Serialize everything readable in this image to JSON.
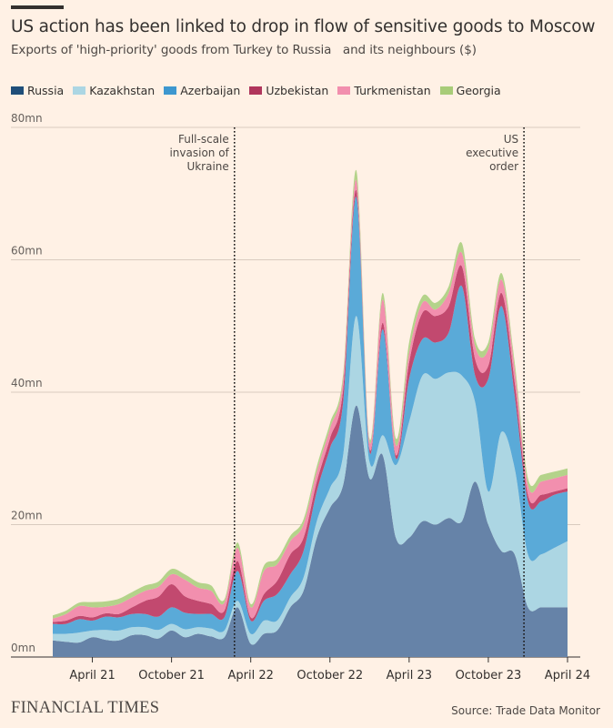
{
  "header": {
    "title": "US action has been linked to drop in flow of sensitive goods to Moscow",
    "subtitle": "Exports of 'high-priority' goods from Turkey to Russia   and its neighbours ($)"
  },
  "footer": {
    "logo": "FINANCIAL TIMES",
    "source": "Source: Trade Data Monitor"
  },
  "colors": {
    "background": "#fff1e5",
    "grid": "#d9cbbf",
    "Russia": "#6683a8",
    "Kazakhstan": "#acd6e3",
    "Azerbaijan": "#5aaad8",
    "Uzbekistan": "#c2496f",
    "Turkmenistan": "#f28fae",
    "Georgia": "#b4d38a"
  },
  "chart_data": {
    "type": "area",
    "stacked": true,
    "title": "US action has been linked to drop in flow of sensitive goods to Moscow",
    "subtitle": "Exports of 'high-priority' goods from Turkey to Russia   and its neighbours ($)",
    "y_unit_suffix": "mn",
    "ylim": [
      0,
      80
    ],
    "yticks": [
      0,
      20,
      40,
      60,
      80
    ],
    "ytick_labels": [
      "0mn",
      "20mn",
      "40mn",
      "60mn",
      "80mn"
    ],
    "xlim": [
      "2021-01",
      "2024-04"
    ],
    "xticks": [
      "2021-04",
      "2021-10",
      "2022-04",
      "2022-10",
      "2023-04",
      "2023-10",
      "2024-04"
    ],
    "xtick_labels": [
      "April 21",
      "October 21",
      "April 22",
      "October 22",
      "April 23",
      "October 23",
      "April 24"
    ],
    "grid": true,
    "legend_position": "top-left",
    "x": [
      "2021-01",
      "2021-02",
      "2021-03",
      "2021-04",
      "2021-05",
      "2021-06",
      "2021-07",
      "2021-08",
      "2021-09",
      "2021-10",
      "2021-11",
      "2021-12",
      "2022-01",
      "2022-02",
      "2022-03",
      "2022-04",
      "2022-05",
      "2022-06",
      "2022-07",
      "2022-08",
      "2022-09",
      "2022-10",
      "2022-11",
      "2022-12",
      "2023-01",
      "2023-02",
      "2023-03",
      "2023-04",
      "2023-05",
      "2023-06",
      "2023-07",
      "2023-08",
      "2023-09",
      "2023-10",
      "2023-11",
      "2023-12",
      "2024-01",
      "2024-02",
      "2024-03",
      "2024-04"
    ],
    "series": [
      {
        "name": "Russia",
        "values": [
          2.5,
          2.3,
          2.2,
          3.0,
          2.6,
          2.5,
          3.3,
          3.3,
          2.8,
          4.0,
          3.0,
          3.5,
          3.1,
          3.0,
          7.5,
          2.0,
          3.5,
          4.0,
          7.5,
          10.0,
          18.0,
          22.5,
          26.0,
          38.0,
          27.0,
          30.5,
          18.0,
          18.0,
          20.5,
          20.0,
          21.0,
          20.5,
          26.5,
          20.0,
          16.0,
          15.5,
          7.5,
          7.5,
          7.5,
          7.5
        ]
      },
      {
        "name": "Kazakhstan",
        "values": [
          1.0,
          1.2,
          1.5,
          1.0,
          1.5,
          1.5,
          1.2,
          1.2,
          1.3,
          1.0,
          1.2,
          1.0,
          1.2,
          1.0,
          1.0,
          1.5,
          2.0,
          1.5,
          1.5,
          2.0,
          2.5,
          3.0,
          4.5,
          13.5,
          2.5,
          3.0,
          11.0,
          17.5,
          22.0,
          22.0,
          22.0,
          22.0,
          12.0,
          5.0,
          18.0,
          13.0,
          8.0,
          8.0,
          9.0,
          10.0
        ]
      },
      {
        "name": "Azerbaijan",
        "values": [
          1.5,
          1.5,
          2.0,
          1.5,
          2.0,
          2.0,
          2.0,
          2.0,
          2.0,
          2.5,
          2.5,
          2.0,
          2.2,
          2.0,
          4.5,
          2.0,
          3.0,
          4.0,
          3.5,
          4.0,
          4.5,
          6.0,
          8.0,
          18.0,
          1.5,
          16.0,
          1.0,
          6.5,
          5.5,
          5.5,
          6.0,
          13.5,
          4.0,
          17.0,
          19.0,
          11.0,
          8.0,
          8.0,
          8.0,
          7.5
        ]
      },
      {
        "name": "Uzbekistan",
        "values": [
          0.3,
          0.5,
          0.5,
          0.5,
          0.5,
          0.5,
          1.0,
          2.0,
          3.0,
          3.5,
          2.5,
          2.0,
          1.5,
          1.0,
          1.5,
          0.5,
          1.0,
          2.0,
          3.0,
          2.0,
          1.5,
          1.5,
          2.0,
          1.0,
          0.5,
          1.0,
          0.5,
          2.5,
          4.0,
          4.0,
          4.0,
          3.0,
          2.5,
          2.0,
          2.0,
          2.0,
          1.0,
          1.0,
          0.5,
          0.5
        ]
      },
      {
        "name": "Turkmenistan",
        "values": [
          0.5,
          1.0,
          1.5,
          1.5,
          1.0,
          1.5,
          1.5,
          1.5,
          1.5,
          1.5,
          2.5,
          2.0,
          2.0,
          1.2,
          2.0,
          1.5,
          3.5,
          2.5,
          2.0,
          2.0,
          1.5,
          1.5,
          1.5,
          1.5,
          1.0,
          3.5,
          1.5,
          1.5,
          1.5,
          1.0,
          2.0,
          2.0,
          2.0,
          2.5,
          2.0,
          2.0,
          1.5,
          2.0,
          2.0,
          2.0
        ]
      },
      {
        "name": "Georgia",
        "values": [
          0.5,
          0.5,
          0.5,
          0.8,
          0.8,
          0.8,
          0.8,
          0.8,
          0.8,
          0.8,
          0.8,
          0.8,
          0.8,
          0.5,
          0.8,
          0.5,
          0.8,
          0.8,
          0.8,
          0.8,
          0.8,
          0.8,
          0.8,
          1.5,
          0.5,
          1.0,
          1.0,
          1.5,
          1.0,
          1.0,
          1.0,
          1.5,
          1.0,
          1.0,
          1.0,
          1.0,
          1.0,
          1.0,
          1.0,
          1.0
        ]
      }
    ],
    "annotations": [
      {
        "x": "2022-02-24",
        "lines": [
          "Full-scale",
          "invasion of",
          "Ukraine"
        ]
      },
      {
        "x": "2023-12-22",
        "lines": [
          "US",
          "executive",
          "order"
        ]
      }
    ]
  }
}
